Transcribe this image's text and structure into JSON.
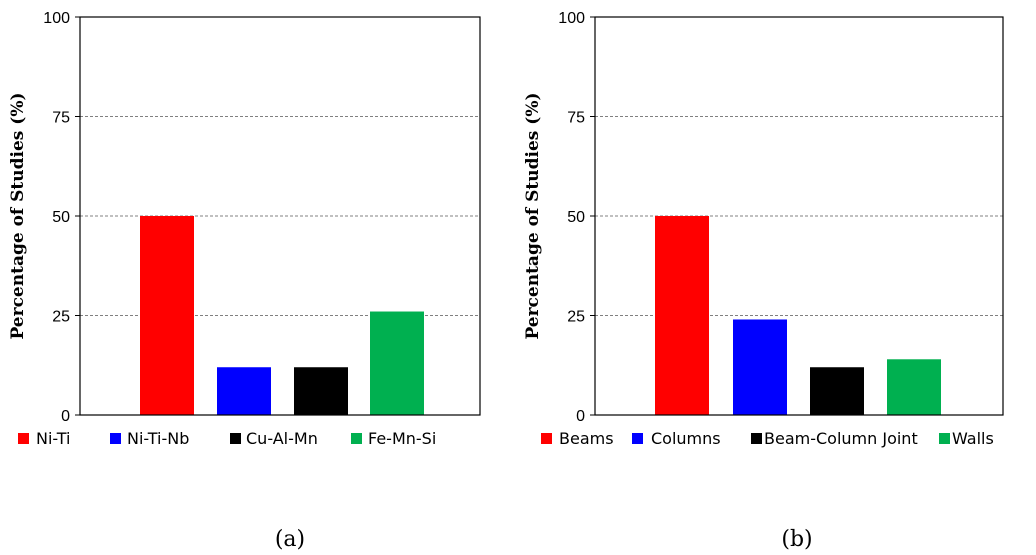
{
  "chart_data": [
    {
      "type": "bar",
      "categories": [
        "Ni-Ti",
        "Ni-Ti-Nb",
        "Cu-Al-Mn",
        "Fe-Mn-Si"
      ],
      "values": [
        50,
        12,
        12,
        26
      ],
      "colors": [
        "#ff0000",
        "#0000ff",
        "#000000",
        "#00b050"
      ],
      "ylabel": "Percentage of Studies (%)",
      "yticks": [
        "0",
        "25",
        "50",
        "75",
        "100"
      ],
      "ylim": [
        0,
        100
      ],
      "grid": "dashed horizontal",
      "legend": "bottom",
      "caption": "(a)"
    },
    {
      "type": "bar",
      "categories": [
        "Beams",
        "Columns",
        "Beam-Column Joint",
        "Walls"
      ],
      "values": [
        50,
        24,
        12,
        14
      ],
      "colors": [
        "#ff0000",
        "#0000ff",
        "#000000",
        "#00b050"
      ],
      "ylabel": "Percentage of Studies (%)",
      "yticks": [
        "0",
        "25",
        "50",
        "75",
        "100"
      ],
      "ylim": [
        0,
        100
      ],
      "grid": "dashed horizontal",
      "legend": "bottom",
      "caption": "(b)"
    }
  ]
}
